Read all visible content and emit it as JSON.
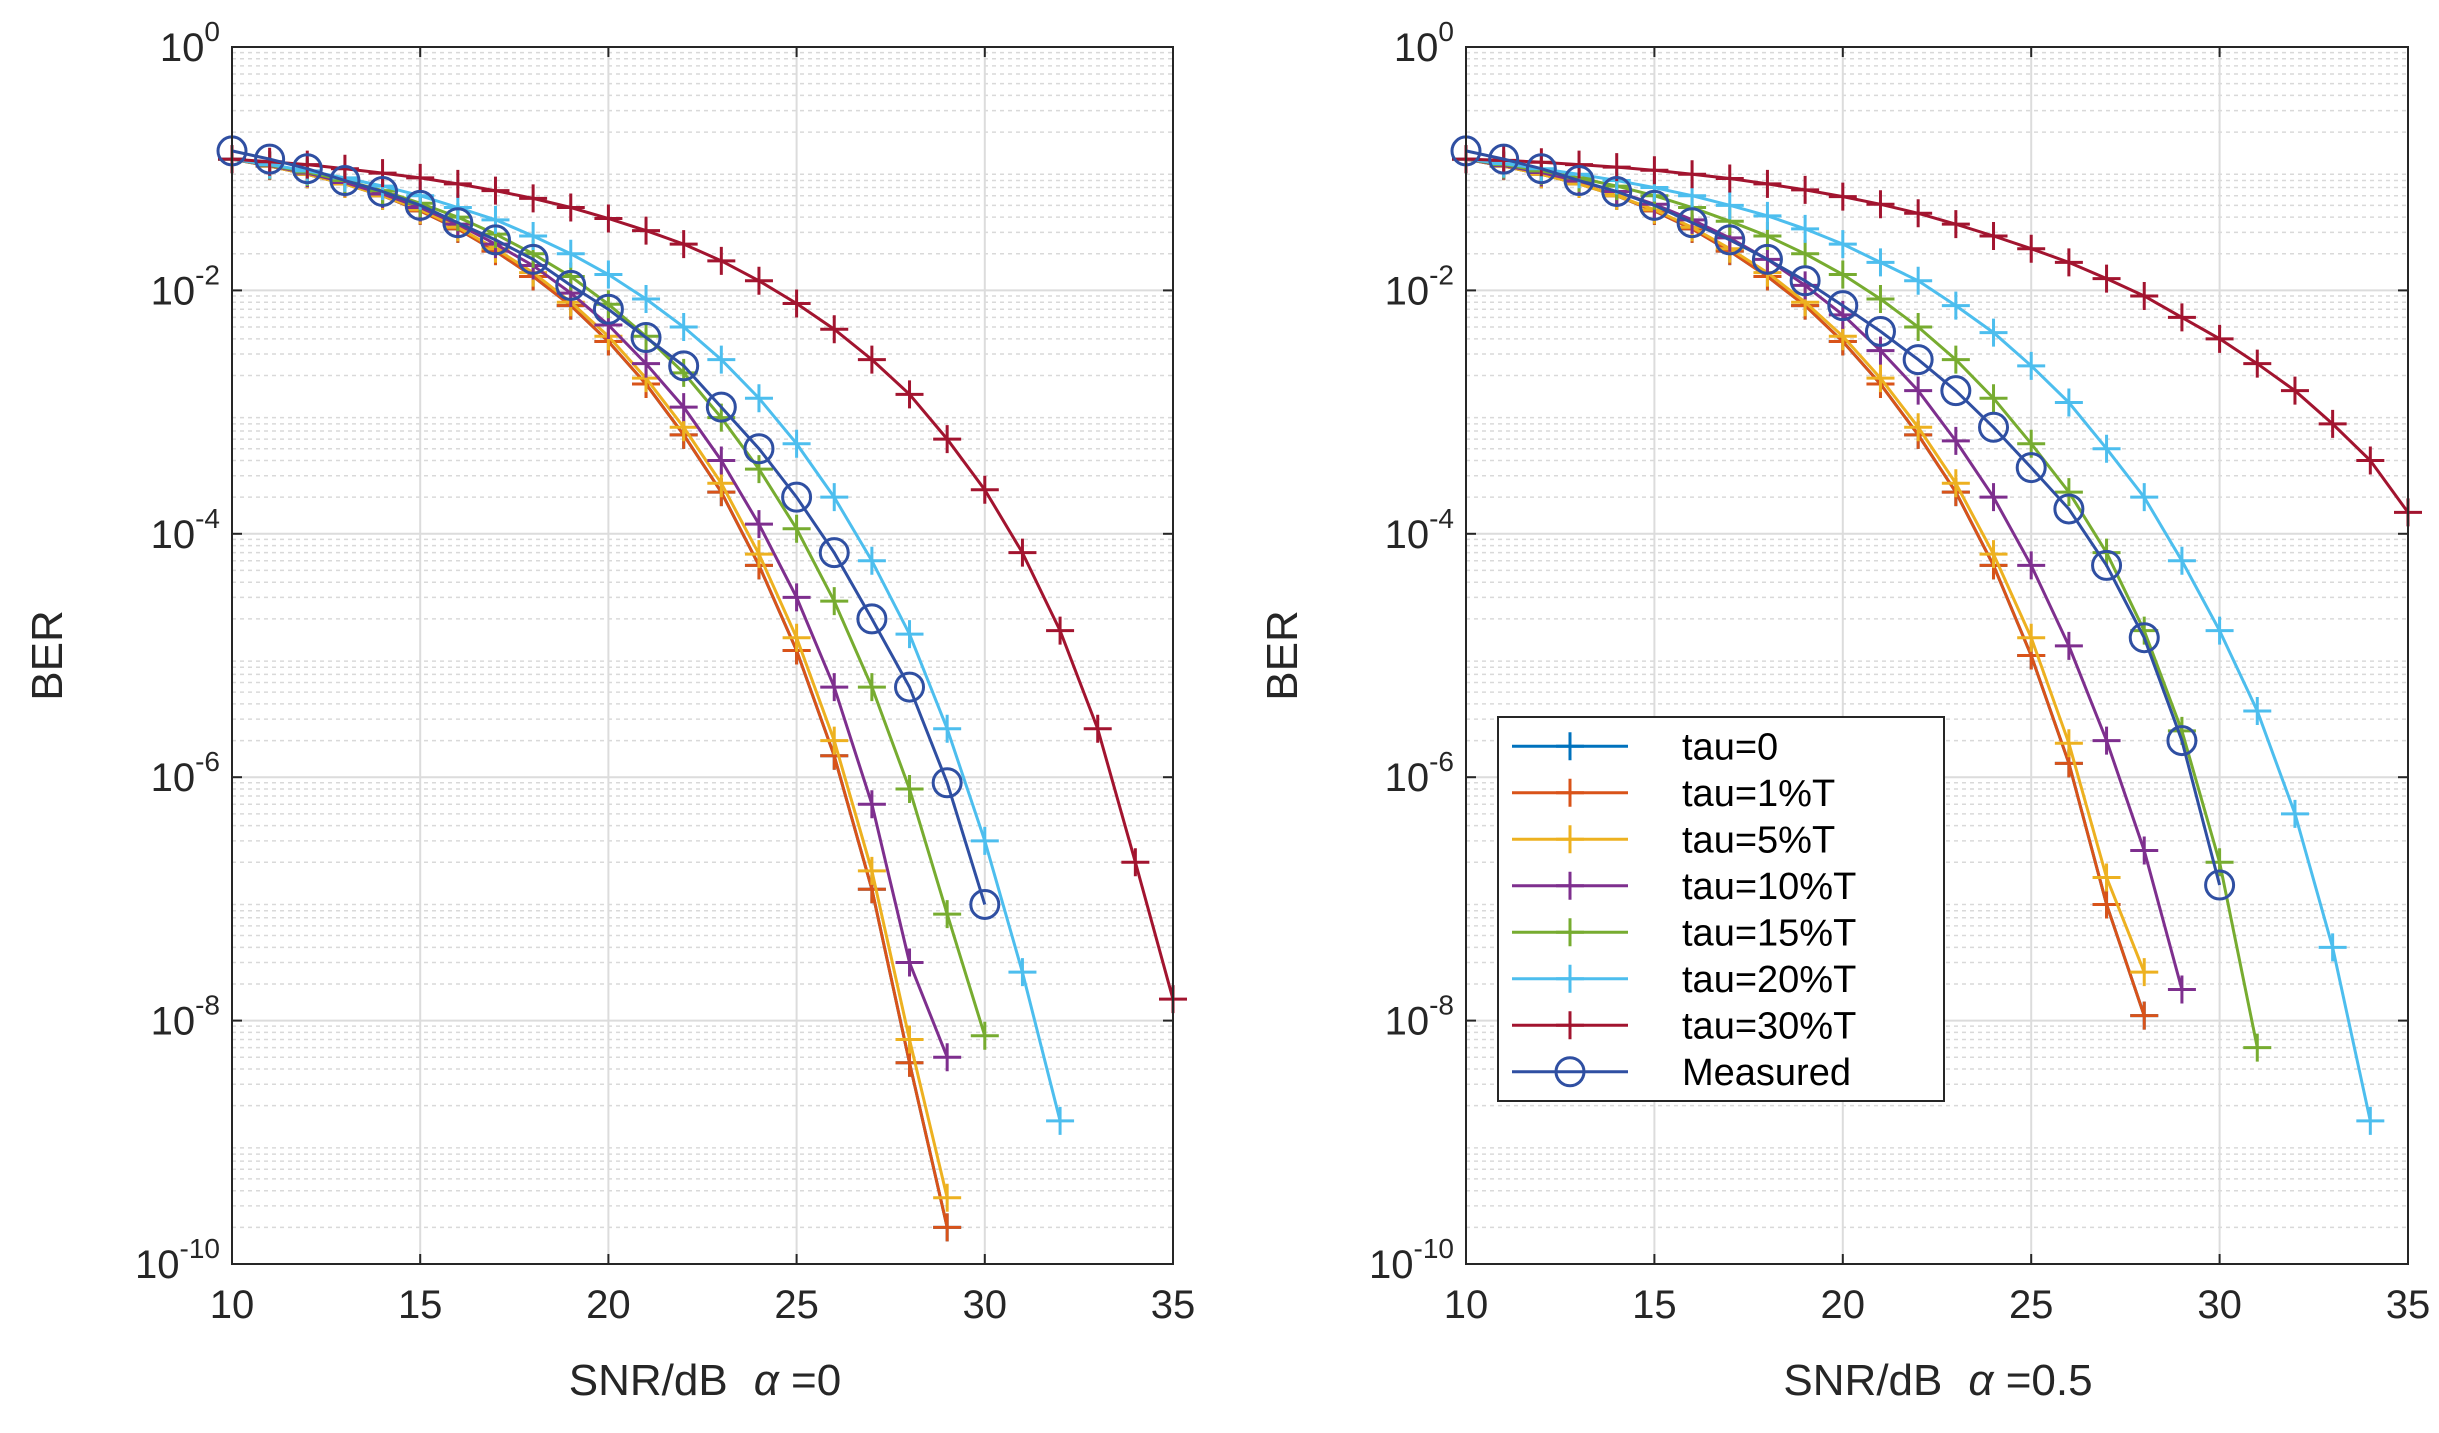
{
  "chart_data": [
    {
      "type": "line",
      "yscale": "log",
      "xlabel": "SNR/dB",
      "alpha_symbol": "α",
      "alpha_text": " =0",
      "ylabel": "BER",
      "xlim": [
        10,
        35
      ],
      "ylim": [
        1e-10,
        1
      ],
      "xticks": [
        10,
        15,
        20,
        25,
        30,
        35
      ],
      "yticks": [
        1e-10,
        1e-08,
        1e-06,
        0.0001,
        0.01,
        1
      ],
      "ytick_labels": [
        {
          "base": "10",
          "exp": "-10"
        },
        {
          "base": "10",
          "exp": "-8"
        },
        {
          "base": "10",
          "exp": "-6"
        },
        {
          "base": "10",
          "exp": "-4"
        },
        {
          "base": "10",
          "exp": "-2"
        },
        {
          "base": "10",
          "exp": "0"
        }
      ],
      "grid": true,
      "series": [
        {
          "name": "tau=0",
          "color": "#0072BD",
          "marker": "+",
          "x": [
            10,
            11,
            12,
            13,
            14,
            15,
            16,
            17,
            18,
            19,
            20,
            21,
            22,
            23,
            24,
            25,
            26,
            27,
            28,
            29
          ],
          "y": [
            0.12,
            0.105,
            0.09,
            0.075,
            0.06,
            0.045,
            0.032,
            0.021,
            0.013,
            0.0075,
            0.0038,
            0.0017,
            0.00065,
            0.00022,
            5.5e-05,
            1.1e-05,
            1.5e-06,
            1.2e-07,
            4.5e-09,
            2e-10
          ]
        },
        {
          "name": "tau=1%T",
          "color": "#D95319",
          "marker": "+",
          "x": [
            10,
            11,
            12,
            13,
            14,
            15,
            16,
            17,
            18,
            19,
            20,
            21,
            22,
            23,
            24,
            25,
            26,
            27,
            28,
            29
          ],
          "y": [
            0.12,
            0.105,
            0.09,
            0.075,
            0.06,
            0.045,
            0.032,
            0.021,
            0.013,
            0.0075,
            0.0038,
            0.0017,
            0.00065,
            0.00022,
            5.5e-05,
            1.1e-05,
            1.5e-06,
            1.2e-07,
            4.5e-09,
            2e-10
          ]
        },
        {
          "name": "tau=5%T",
          "color": "#EDB120",
          "marker": "+",
          "x": [
            10,
            11,
            12,
            13,
            14,
            15,
            16,
            17,
            18,
            19,
            20,
            21,
            22,
            23,
            24,
            25,
            26,
            27,
            28,
            29
          ],
          "y": [
            0.12,
            0.105,
            0.09,
            0.075,
            0.06,
            0.046,
            0.033,
            0.022,
            0.014,
            0.008,
            0.0042,
            0.0019,
            0.00075,
            0.00026,
            6.8e-05,
            1.4e-05,
            2e-06,
            1.7e-07,
            7e-09,
            3.5e-10
          ]
        },
        {
          "name": "tau=10%T",
          "color": "#7E2F8E",
          "marker": "+",
          "x": [
            10,
            11,
            12,
            13,
            14,
            15,
            16,
            17,
            18,
            19,
            20,
            21,
            22,
            23,
            24,
            25,
            26,
            27,
            28,
            29
          ],
          "y": [
            0.12,
            0.106,
            0.092,
            0.077,
            0.062,
            0.048,
            0.035,
            0.024,
            0.016,
            0.0095,
            0.0052,
            0.0025,
            0.0011,
            0.0004,
            0.00012,
            3e-05,
            5.5e-06,
            6e-07,
            3e-08,
            5e-09
          ]
        },
        {
          "name": "tau=15%T",
          "color": "#77AC30",
          "marker": "+",
          "x": [
            10,
            11,
            12,
            13,
            14,
            15,
            16,
            17,
            18,
            19,
            20,
            21,
            22,
            23,
            24,
            25,
            26,
            27,
            28,
            29,
            30
          ],
          "y": [
            0.12,
            0.107,
            0.094,
            0.08,
            0.066,
            0.052,
            0.04,
            0.029,
            0.02,
            0.013,
            0.0077,
            0.0042,
            0.0021,
            0.0009,
            0.00034,
            0.00011,
            2.8e-05,
            5.5e-06,
            8e-07,
            7.5e-08,
            7.5e-09
          ]
        },
        {
          "name": "tau=20%T",
          "color": "#4DBEEE",
          "marker": "+",
          "x": [
            10,
            11,
            12,
            13,
            14,
            15,
            16,
            17,
            18,
            19,
            20,
            21,
            22,
            23,
            24,
            25,
            26,
            27,
            28,
            29,
            30,
            31,
            32
          ],
          "y": [
            0.12,
            0.108,
            0.096,
            0.084,
            0.072,
            0.06,
            0.048,
            0.038,
            0.028,
            0.02,
            0.0135,
            0.0085,
            0.005,
            0.0027,
            0.0013,
            0.00055,
            0.0002,
            6e-05,
            1.5e-05,
            2.5e-06,
            3e-07,
            2.5e-08,
            1.5e-09
          ]
        },
        {
          "name": "tau=30%T",
          "color": "#A2142F",
          "marker": "+",
          "x": [
            10,
            11,
            12,
            13,
            14,
            15,
            16,
            17,
            18,
            19,
            20,
            21,
            22,
            23,
            24,
            25,
            26,
            27,
            28,
            29,
            30,
            31,
            32,
            33,
            34,
            35
          ],
          "y": [
            0.12,
            0.114,
            0.108,
            0.1,
            0.092,
            0.084,
            0.075,
            0.066,
            0.057,
            0.048,
            0.039,
            0.031,
            0.024,
            0.0175,
            0.012,
            0.0078,
            0.0048,
            0.0027,
            0.0014,
            0.0006,
            0.00023,
            7e-05,
            1.6e-05,
            2.5e-06,
            2e-07,
            1.5e-08
          ]
        },
        {
          "name": "Measured",
          "color": "#2F4FA2",
          "marker": "o",
          "x": [
            10,
            11,
            12,
            13,
            14,
            15,
            16,
            17,
            18,
            19,
            20,
            21,
            22,
            23,
            24,
            25,
            26,
            27,
            28,
            29,
            30
          ],
          "y": [
            0.14,
            0.12,
            0.1,
            0.08,
            0.065,
            0.05,
            0.036,
            0.026,
            0.018,
            0.011,
            0.007,
            0.0041,
            0.0024,
            0.0011,
            0.0005,
            0.0002,
            7e-05,
            2e-05,
            5.5e-06,
            9e-07,
            9e-08
          ]
        }
      ]
    },
    {
      "type": "line",
      "yscale": "log",
      "xlabel": "SNR/dB",
      "alpha_symbol": "α",
      "alpha_text": " =0.5",
      "ylabel": "BER",
      "xlim": [
        10,
        35
      ],
      "ylim": [
        1e-10,
        1
      ],
      "xticks": [
        10,
        15,
        20,
        25,
        30,
        35
      ],
      "yticks": [
        1e-10,
        1e-08,
        1e-06,
        0.0001,
        0.01,
        1
      ],
      "ytick_labels": [
        {
          "base": "10",
          "exp": "-10"
        },
        {
          "base": "10",
          "exp": "-8"
        },
        {
          "base": "10",
          "exp": "-6"
        },
        {
          "base": "10",
          "exp": "-4"
        },
        {
          "base": "10",
          "exp": "-2"
        },
        {
          "base": "10",
          "exp": "0"
        }
      ],
      "grid": true,
      "legend_position": "bottom-left",
      "series": [
        {
          "name": "tau=0",
          "color": "#0072BD",
          "marker": "+",
          "x": [
            10,
            11,
            12,
            13,
            14,
            15,
            16,
            17,
            18,
            19,
            20,
            21,
            22,
            23,
            24,
            25,
            26,
            27,
            28
          ],
          "y": [
            0.12,
            0.105,
            0.09,
            0.075,
            0.06,
            0.045,
            0.032,
            0.021,
            0.013,
            0.0075,
            0.0038,
            0.0017,
            0.00065,
            0.00022,
            5.5e-05,
            1e-05,
            1.3e-06,
            9e-08,
            1.1e-08
          ]
        },
        {
          "name": "tau=1%T",
          "color": "#D95319",
          "marker": "+",
          "x": [
            10,
            11,
            12,
            13,
            14,
            15,
            16,
            17,
            18,
            19,
            20,
            21,
            22,
            23,
            24,
            25,
            26,
            27,
            28
          ],
          "y": [
            0.12,
            0.105,
            0.09,
            0.075,
            0.06,
            0.045,
            0.032,
            0.021,
            0.013,
            0.0075,
            0.0038,
            0.0017,
            0.00065,
            0.00022,
            5.5e-05,
            1e-05,
            1.3e-06,
            9e-08,
            1.1e-08
          ]
        },
        {
          "name": "tau=5%T",
          "color": "#EDB120",
          "marker": "+",
          "x": [
            10,
            11,
            12,
            13,
            14,
            15,
            16,
            17,
            18,
            19,
            20,
            21,
            22,
            23,
            24,
            25,
            26,
            27,
            28
          ],
          "y": [
            0.12,
            0.105,
            0.09,
            0.075,
            0.06,
            0.046,
            0.033,
            0.022,
            0.014,
            0.008,
            0.0042,
            0.0019,
            0.00075,
            0.00026,
            6.8e-05,
            1.4e-05,
            1.9e-06,
            1.5e-07,
            2.5e-08
          ]
        },
        {
          "name": "tau=10%T",
          "color": "#7E2F8E",
          "marker": "+",
          "x": [
            10,
            11,
            12,
            13,
            14,
            15,
            16,
            17,
            18,
            19,
            20,
            21,
            22,
            23,
            24,
            25,
            26,
            27,
            28,
            29
          ],
          "y": [
            0.12,
            0.106,
            0.093,
            0.079,
            0.065,
            0.051,
            0.038,
            0.027,
            0.018,
            0.011,
            0.0063,
            0.0032,
            0.0015,
            0.00058,
            0.0002,
            5.5e-05,
            1.2e-05,
            2e-06,
            2.5e-07,
            1.8e-08
          ]
        },
        {
          "name": "tau=15%T",
          "color": "#77AC30",
          "marker": "+",
          "x": [
            10,
            11,
            12,
            13,
            14,
            15,
            16,
            17,
            18,
            19,
            20,
            21,
            22,
            23,
            24,
            25,
            26,
            27,
            28,
            29,
            30,
            31
          ],
          "y": [
            0.12,
            0.108,
            0.096,
            0.084,
            0.072,
            0.06,
            0.048,
            0.037,
            0.028,
            0.02,
            0.0135,
            0.0085,
            0.005,
            0.0027,
            0.0013,
            0.00055,
            0.00022,
            7e-05,
            1.6e-05,
            2.4e-06,
            2e-07,
            6e-09
          ]
        },
        {
          "name": "tau=20%T",
          "color": "#4DBEEE",
          "marker": "+",
          "x": [
            10,
            11,
            12,
            13,
            14,
            15,
            16,
            17,
            18,
            19,
            20,
            21,
            22,
            23,
            24,
            25,
            26,
            27,
            28,
            29,
            30,
            31,
            32,
            33,
            34
          ],
          "y": [
            0.12,
            0.11,
            0.1,
            0.09,
            0.08,
            0.07,
            0.06,
            0.05,
            0.041,
            0.032,
            0.024,
            0.017,
            0.012,
            0.0075,
            0.0045,
            0.0024,
            0.0012,
            0.0005,
            0.0002,
            6e-05,
            1.6e-05,
            3.5e-06,
            5e-07,
            4e-08,
            1.5e-09
          ]
        },
        {
          "name": "tau=30%T",
          "color": "#A2142F",
          "marker": "+",
          "x": [
            10,
            11,
            12,
            13,
            14,
            15,
            16,
            17,
            18,
            19,
            20,
            21,
            22,
            23,
            24,
            25,
            26,
            27,
            28,
            29,
            30,
            31,
            32,
            33,
            34,
            35
          ],
          "y": [
            0.12,
            0.117,
            0.113,
            0.108,
            0.103,
            0.097,
            0.09,
            0.083,
            0.075,
            0.067,
            0.059,
            0.051,
            0.043,
            0.035,
            0.028,
            0.022,
            0.017,
            0.0125,
            0.009,
            0.006,
            0.004,
            0.0025,
            0.0015,
            0.0008,
            0.0004,
            0.00015
          ]
        },
        {
          "name": "Measured",
          "color": "#2F4FA2",
          "marker": "o",
          "x": [
            10,
            11,
            12,
            13,
            14,
            15,
            16,
            17,
            18,
            19,
            20,
            21,
            22,
            23,
            24,
            25,
            26,
            27,
            28,
            29,
            30
          ],
          "y": [
            0.14,
            0.12,
            0.1,
            0.08,
            0.065,
            0.05,
            0.036,
            0.026,
            0.018,
            0.012,
            0.0075,
            0.0046,
            0.0027,
            0.0015,
            0.00075,
            0.00035,
            0.00016,
            5.5e-05,
            1.4e-05,
            2e-06,
            1.3e-07
          ]
        }
      ]
    }
  ]
}
